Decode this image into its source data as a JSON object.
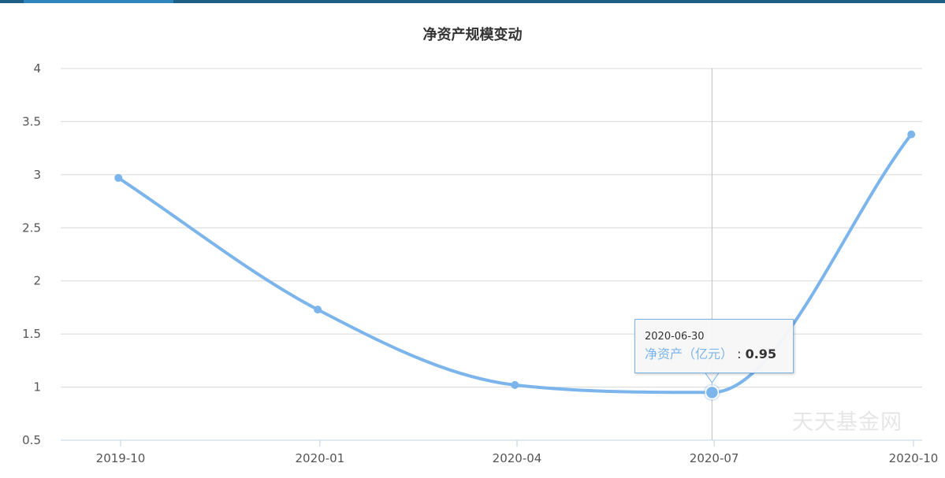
{
  "chart_data": {
    "type": "line",
    "title": "净资产规模变动",
    "x": [
      "2019-09-30",
      "2019-12-31",
      "2020-03-31",
      "2020-06-30",
      "2020-09-30"
    ],
    "series": [
      {
        "name": "净资产（亿元）",
        "values": [
          2.97,
          1.73,
          1.02,
          0.95,
          3.38
        ]
      }
    ],
    "xticks": [
      "2019-10",
      "2020-01",
      "2020-04",
      "2020-07",
      "2020-10"
    ],
    "yticks": [
      "4",
      "3.5",
      "3",
      "2.5",
      "2",
      "1.5",
      "1",
      "0.5"
    ],
    "ylim": [
      0.5,
      4
    ],
    "grid": true,
    "color": "#7cb5ec"
  },
  "tooltip": {
    "date": "2020-06-30",
    "label": "净资产（亿元）",
    "colon": ":",
    "value": "0.95"
  },
  "watermark": "天天基金网"
}
